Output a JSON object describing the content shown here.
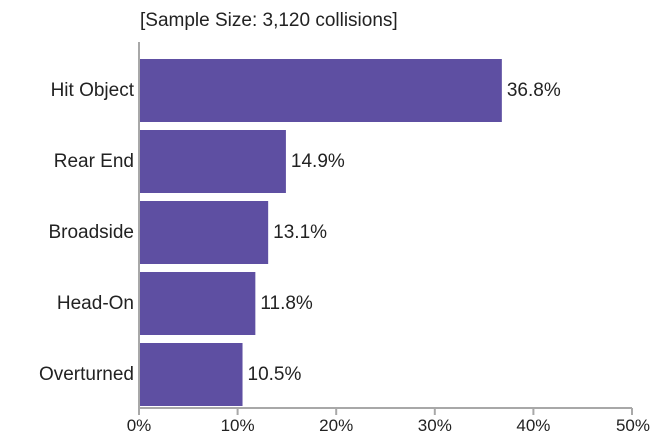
{
  "subtitle": "[Sample Size: 3,120 collisions]",
  "colors": {
    "bar": "#5e4fa2",
    "axis": "#a8a8a8"
  },
  "chart_data": {
    "type": "bar",
    "orientation": "horizontal",
    "title": "",
    "subtitle": "[Sample Size: 3,120 collisions]",
    "categories": [
      "Hit Object",
      "Rear End",
      "Broadside",
      "Head-On",
      "Overturned"
    ],
    "values": [
      36.8,
      14.9,
      13.1,
      11.8,
      10.5
    ],
    "value_labels": [
      "36.8%",
      "14.9%",
      "13.1%",
      "11.8%",
      "10.5%"
    ],
    "xlim": [
      0,
      50
    ],
    "x_ticks": [
      0,
      10,
      20,
      30,
      40,
      50
    ],
    "x_tick_labels": [
      "0%",
      "10%",
      "20%",
      "30%",
      "40%",
      "50%"
    ],
    "grid": false,
    "legend": "none"
  }
}
